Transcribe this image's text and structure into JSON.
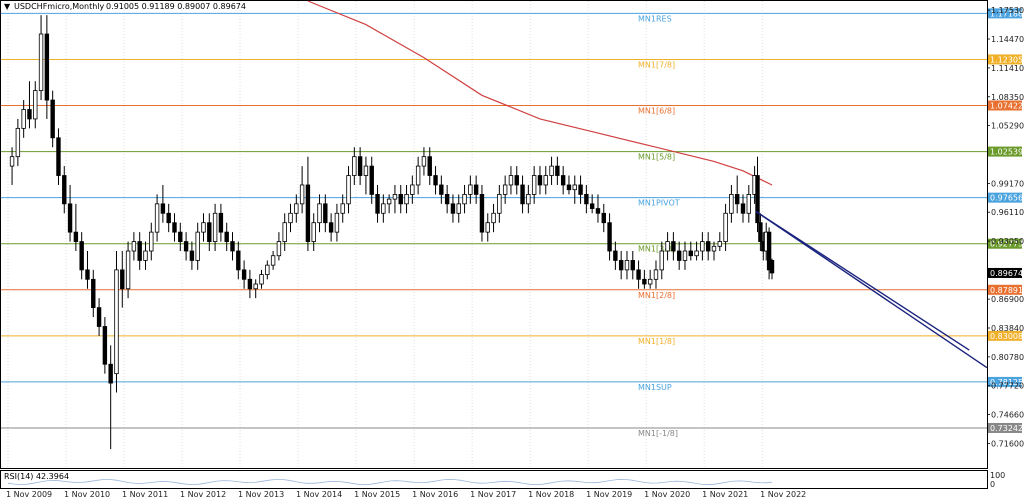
{
  "header": {
    "arrow_glyph": "▼",
    "symbol": "USDCHFmicro,Monthly",
    "ohlc": "0.91005 0.91189 0.89007 0.89674"
  },
  "rsi_panel": {
    "label": "RSI(14) 42.3964",
    "scale_top": "100",
    "scale_bottom": "0"
  },
  "chart_data": {
    "type": "candlestick",
    "symbol": "USDCHFmicro",
    "timeframe": "Monthly",
    "ylim": [
      0.69,
      1.185
    ],
    "price_axis_ticks": [
      "1.17530",
      "1.14470",
      "1.11410",
      "1.08350",
      "1.05290",
      "0.99170",
      "0.96110",
      "0.93050",
      "0.86900",
      "0.83840",
      "0.80780",
      "0.77720",
      "0.74660",
      "0.71600"
    ],
    "x_ticks": [
      "1 Nov 2009",
      "1 Nov 2010",
      "1 Nov 2011",
      "1 Nov 2012",
      "1 Nov 2013",
      "1 Nov 2014",
      "1 Nov 2015",
      "1 Nov 2016",
      "1 Nov 2017",
      "1 Nov 2018",
      "1 Nov 2019",
      "1 Nov 2020",
      "1 Nov 2021",
      "1 Nov 2022"
    ],
    "x_start_year": 2009.83,
    "x_end_year": 2023.0,
    "current_price": "0.89674",
    "levels": [
      {
        "name": "MN1RES",
        "value": 1.17188,
        "label": "1.17188",
        "color": "#4aa3df"
      },
      {
        "name": "MN1[7/8]",
        "value": 1.12305,
        "label": "1.12305",
        "color": "#f0b02a"
      },
      {
        "name": "MN1[6/8]",
        "value": 1.07422,
        "label": "1.07422",
        "color": "#e87030"
      },
      {
        "name": "MN1[5/8]",
        "value": 1.02539,
        "label": "1.02539",
        "color": "#6a9a2a"
      },
      {
        "name": "MN1PIVOT",
        "value": 0.97656,
        "label": "0.97656",
        "color": "#4aa3df"
      },
      {
        "name": "MN1[3/8]",
        "value": 0.92773,
        "label": "0.92773",
        "color": "#6a9a2a"
      },
      {
        "name": "MN1[2/8]",
        "value": 0.87891,
        "label": "0.87891",
        "color": "#e87030"
      },
      {
        "name": "MN1[1/8]",
        "value": 0.83008,
        "label": "0.83008",
        "color": "#f0b02a"
      },
      {
        "name": "MN1SUP",
        "value": 0.78125,
        "label": "0.78125",
        "color": "#4aa3df"
      },
      {
        "name": "MN1[-1/8]",
        "value": 0.73242,
        "label": "0.73242",
        "color": "#888888"
      }
    ],
    "ma_line": {
      "color": "#d04040",
      "points": [
        [
          2015.0,
          1.185
        ],
        [
          2016.0,
          1.16
        ],
        [
          2017.0,
          1.125
        ],
        [
          2018.0,
          1.085
        ],
        [
          2019.0,
          1.06
        ],
        [
          2020.0,
          1.045
        ],
        [
          2021.0,
          1.03
        ],
        [
          2022.0,
          1.015
        ],
        [
          2022.5,
          1.005
        ],
        [
          2023.0,
          0.99
        ]
      ]
    },
    "trend_lines": [
      {
        "color": "#1a237e",
        "from": [
          2022.72,
          0.962
        ],
        "to": [
          2027.1,
          0.78
        ]
      },
      {
        "color": "#1a237e",
        "from": [
          2022.72,
          0.962
        ],
        "to": [
          2026.4,
          0.815
        ]
      }
    ],
    "candles": [
      {
        "t": 2009.9,
        "o": 1.01,
        "h": 1.03,
        "l": 0.99,
        "c": 1.02
      },
      {
        "t": 2010.0,
        "o": 1.02,
        "h": 1.06,
        "l": 1.01,
        "c": 1.05
      },
      {
        "t": 2010.1,
        "o": 1.05,
        "h": 1.08,
        "l": 1.04,
        "c": 1.07
      },
      {
        "t": 2010.2,
        "o": 1.07,
        "h": 1.1,
        "l": 1.05,
        "c": 1.06
      },
      {
        "t": 2010.3,
        "o": 1.06,
        "h": 1.1,
        "l": 1.05,
        "c": 1.09
      },
      {
        "t": 2010.4,
        "o": 1.09,
        "h": 1.17,
        "l": 1.08,
        "c": 1.15
      },
      {
        "t": 2010.5,
        "o": 1.15,
        "h": 1.17,
        "l": 1.06,
        "c": 1.08
      },
      {
        "t": 2010.6,
        "o": 1.08,
        "h": 1.09,
        "l": 1.03,
        "c": 1.04
      },
      {
        "t": 2010.7,
        "o": 1.04,
        "h": 1.05,
        "l": 0.99,
        "c": 1.0
      },
      {
        "t": 2010.8,
        "o": 1.0,
        "h": 1.01,
        "l": 0.96,
        "c": 0.97
      },
      {
        "t": 2010.9,
        "o": 0.97,
        "h": 0.99,
        "l": 0.93,
        "c": 0.94
      },
      {
        "t": 2011.0,
        "o": 0.94,
        "h": 0.97,
        "l": 0.92,
        "c": 0.93
      },
      {
        "t": 2011.1,
        "o": 0.93,
        "h": 0.94,
        "l": 0.89,
        "c": 0.9
      },
      {
        "t": 2011.2,
        "o": 0.9,
        "h": 0.92,
        "l": 0.88,
        "c": 0.89
      },
      {
        "t": 2011.3,
        "o": 0.89,
        "h": 0.9,
        "l": 0.85,
        "c": 0.86
      },
      {
        "t": 2011.4,
        "o": 0.86,
        "h": 0.87,
        "l": 0.83,
        "c": 0.84
      },
      {
        "t": 2011.5,
        "o": 0.84,
        "h": 0.85,
        "l": 0.79,
        "c": 0.8
      },
      {
        "t": 2011.6,
        "o": 0.8,
        "h": 0.82,
        "l": 0.71,
        "c": 0.78
      },
      {
        "t": 2011.7,
        "o": 0.79,
        "h": 0.92,
        "l": 0.77,
        "c": 0.9
      },
      {
        "t": 2011.8,
        "o": 0.9,
        "h": 0.92,
        "l": 0.86,
        "c": 0.88
      },
      {
        "t": 2011.9,
        "o": 0.88,
        "h": 0.93,
        "l": 0.87,
        "c": 0.92
      },
      {
        "t": 2012.0,
        "o": 0.92,
        "h": 0.94,
        "l": 0.91,
        "c": 0.93
      },
      {
        "t": 2012.1,
        "o": 0.93,
        "h": 0.94,
        "l": 0.9,
        "c": 0.91
      },
      {
        "t": 2012.2,
        "o": 0.91,
        "h": 0.93,
        "l": 0.9,
        "c": 0.92
      },
      {
        "t": 2012.3,
        "o": 0.92,
        "h": 0.95,
        "l": 0.91,
        "c": 0.94
      },
      {
        "t": 2012.4,
        "o": 0.94,
        "h": 0.98,
        "l": 0.93,
        "c": 0.97
      },
      {
        "t": 2012.5,
        "o": 0.97,
        "h": 0.99,
        "l": 0.95,
        "c": 0.96
      },
      {
        "t": 2012.6,
        "o": 0.96,
        "h": 0.97,
        "l": 0.94,
        "c": 0.95
      },
      {
        "t": 2012.7,
        "o": 0.95,
        "h": 0.96,
        "l": 0.93,
        "c": 0.94
      },
      {
        "t": 2012.8,
        "o": 0.94,
        "h": 0.95,
        "l": 0.92,
        "c": 0.93
      },
      {
        "t": 2012.9,
        "o": 0.93,
        "h": 0.94,
        "l": 0.91,
        "c": 0.92
      },
      {
        "t": 2013.0,
        "o": 0.92,
        "h": 0.93,
        "l": 0.9,
        "c": 0.91
      },
      {
        "t": 2013.1,
        "o": 0.91,
        "h": 0.95,
        "l": 0.9,
        "c": 0.94
      },
      {
        "t": 2013.2,
        "o": 0.94,
        "h": 0.96,
        "l": 0.93,
        "c": 0.95
      },
      {
        "t": 2013.3,
        "o": 0.95,
        "h": 0.96,
        "l": 0.92,
        "c": 0.93
      },
      {
        "t": 2013.4,
        "o": 0.93,
        "h": 0.97,
        "l": 0.92,
        "c": 0.96
      },
      {
        "t": 2013.5,
        "o": 0.96,
        "h": 0.97,
        "l": 0.93,
        "c": 0.94
      },
      {
        "t": 2013.6,
        "o": 0.94,
        "h": 0.95,
        "l": 0.92,
        "c": 0.93
      },
      {
        "t": 2013.7,
        "o": 0.93,
        "h": 0.94,
        "l": 0.91,
        "c": 0.92
      },
      {
        "t": 2013.8,
        "o": 0.92,
        "h": 0.93,
        "l": 0.89,
        "c": 0.9
      },
      {
        "t": 2013.9,
        "o": 0.9,
        "h": 0.91,
        "l": 0.88,
        "c": 0.89
      },
      {
        "t": 2014.0,
        "o": 0.89,
        "h": 0.9,
        "l": 0.87,
        "c": 0.88
      },
      {
        "t": 2014.1,
        "o": 0.88,
        "h": 0.89,
        "l": 0.87,
        "c": 0.885
      },
      {
        "t": 2014.2,
        "o": 0.885,
        "h": 0.9,
        "l": 0.88,
        "c": 0.895
      },
      {
        "t": 2014.3,
        "o": 0.895,
        "h": 0.91,
        "l": 0.89,
        "c": 0.905
      },
      {
        "t": 2014.4,
        "o": 0.905,
        "h": 0.92,
        "l": 0.9,
        "c": 0.915
      },
      {
        "t": 2014.5,
        "o": 0.915,
        "h": 0.94,
        "l": 0.91,
        "c": 0.93
      },
      {
        "t": 2014.6,
        "o": 0.93,
        "h": 0.96,
        "l": 0.92,
        "c": 0.95
      },
      {
        "t": 2014.7,
        "o": 0.95,
        "h": 0.97,
        "l": 0.94,
        "c": 0.96
      },
      {
        "t": 2014.8,
        "o": 0.96,
        "h": 0.98,
        "l": 0.95,
        "c": 0.97
      },
      {
        "t": 2014.9,
        "o": 0.97,
        "h": 1.01,
        "l": 0.96,
        "c": 0.99
      },
      {
        "t": 2015.0,
        "o": 0.99,
        "h": 1.02,
        "l": 0.92,
        "c": 0.93
      },
      {
        "t": 2015.1,
        "o": 0.93,
        "h": 0.96,
        "l": 0.92,
        "c": 0.95
      },
      {
        "t": 2015.2,
        "o": 0.95,
        "h": 0.98,
        "l": 0.94,
        "c": 0.97
      },
      {
        "t": 2015.3,
        "o": 0.97,
        "h": 0.98,
        "l": 0.94,
        "c": 0.95
      },
      {
        "t": 2015.4,
        "o": 0.95,
        "h": 0.96,
        "l": 0.93,
        "c": 0.94
      },
      {
        "t": 2015.5,
        "o": 0.94,
        "h": 0.97,
        "l": 0.93,
        "c": 0.96
      },
      {
        "t": 2015.6,
        "o": 0.96,
        "h": 0.98,
        "l": 0.95,
        "c": 0.97
      },
      {
        "t": 2015.7,
        "o": 0.97,
        "h": 1.01,
        "l": 0.96,
        "c": 1.0
      },
      {
        "t": 2015.8,
        "o": 1.0,
        "h": 1.03,
        "l": 0.99,
        "c": 1.02
      },
      {
        "t": 2015.9,
        "o": 1.02,
        "h": 1.03,
        "l": 0.99,
        "c": 1.0
      },
      {
        "t": 2016.0,
        "o": 1.0,
        "h": 1.02,
        "l": 0.98,
        "c": 1.01
      },
      {
        "t": 2016.1,
        "o": 1.01,
        "h": 1.02,
        "l": 0.97,
        "c": 0.98
      },
      {
        "t": 2016.2,
        "o": 0.98,
        "h": 0.99,
        "l": 0.95,
        "c": 0.96
      },
      {
        "t": 2016.3,
        "o": 0.96,
        "h": 0.98,
        "l": 0.95,
        "c": 0.97
      },
      {
        "t": 2016.4,
        "o": 0.97,
        "h": 0.98,
        "l": 0.96,
        "c": 0.975
      },
      {
        "t": 2016.5,
        "o": 0.975,
        "h": 0.99,
        "l": 0.96,
        "c": 0.98
      },
      {
        "t": 2016.6,
        "o": 0.98,
        "h": 0.99,
        "l": 0.96,
        "c": 0.97
      },
      {
        "t": 2016.7,
        "o": 0.97,
        "h": 0.99,
        "l": 0.96,
        "c": 0.98
      },
      {
        "t": 2016.8,
        "o": 0.98,
        "h": 1.0,
        "l": 0.97,
        "c": 0.99
      },
      {
        "t": 2016.9,
        "o": 0.99,
        "h": 1.02,
        "l": 0.98,
        "c": 1.01
      },
      {
        "t": 2017.0,
        "o": 1.01,
        "h": 1.03,
        "l": 1.0,
        "c": 1.02
      },
      {
        "t": 2017.1,
        "o": 1.02,
        "h": 1.03,
        "l": 0.99,
        "c": 1.0
      },
      {
        "t": 2017.2,
        "o": 1.0,
        "h": 1.01,
        "l": 0.98,
        "c": 0.99
      },
      {
        "t": 2017.3,
        "o": 0.99,
        "h": 1.0,
        "l": 0.97,
        "c": 0.98
      },
      {
        "t": 2017.4,
        "o": 0.98,
        "h": 0.99,
        "l": 0.96,
        "c": 0.97
      },
      {
        "t": 2017.5,
        "o": 0.97,
        "h": 0.98,
        "l": 0.95,
        "c": 0.96
      },
      {
        "t": 2017.6,
        "o": 0.96,
        "h": 0.98,
        "l": 0.95,
        "c": 0.97
      },
      {
        "t": 2017.7,
        "o": 0.97,
        "h": 0.99,
        "l": 0.96,
        "c": 0.98
      },
      {
        "t": 2017.8,
        "o": 0.98,
        "h": 1.0,
        "l": 0.97,
        "c": 0.99
      },
      {
        "t": 2017.9,
        "o": 0.99,
        "h": 1.0,
        "l": 0.97,
        "c": 0.98
      },
      {
        "t": 2018.0,
        "o": 0.98,
        "h": 0.99,
        "l": 0.93,
        "c": 0.94
      },
      {
        "t": 2018.1,
        "o": 0.94,
        "h": 0.96,
        "l": 0.93,
        "c": 0.95
      },
      {
        "t": 2018.2,
        "o": 0.95,
        "h": 0.97,
        "l": 0.94,
        "c": 0.96
      },
      {
        "t": 2018.3,
        "o": 0.96,
        "h": 0.99,
        "l": 0.95,
        "c": 0.98
      },
      {
        "t": 2018.4,
        "o": 0.98,
        "h": 1.0,
        "l": 0.97,
        "c": 0.99
      },
      {
        "t": 2018.5,
        "o": 0.99,
        "h": 1.01,
        "l": 0.98,
        "c": 1.0
      },
      {
        "t": 2018.6,
        "o": 1.0,
        "h": 1.01,
        "l": 0.98,
        "c": 0.99
      },
      {
        "t": 2018.7,
        "o": 0.99,
        "h": 1.0,
        "l": 0.96,
        "c": 0.97
      },
      {
        "t": 2018.8,
        "o": 0.97,
        "h": 0.99,
        "l": 0.96,
        "c": 0.98
      },
      {
        "t": 2018.9,
        "o": 0.98,
        "h": 1.01,
        "l": 0.97,
        "c": 1.0
      },
      {
        "t": 2019.0,
        "o": 1.0,
        "h": 1.01,
        "l": 0.98,
        "c": 0.99
      },
      {
        "t": 2019.1,
        "o": 0.99,
        "h": 1.01,
        "l": 0.98,
        "c": 1.0
      },
      {
        "t": 2019.2,
        "o": 1.0,
        "h": 1.02,
        "l": 0.99,
        "c": 1.01
      },
      {
        "t": 2019.3,
        "o": 1.01,
        "h": 1.02,
        "l": 0.99,
        "c": 1.0
      },
      {
        "t": 2019.4,
        "o": 1.0,
        "h": 1.01,
        "l": 0.98,
        "c": 0.99
      },
      {
        "t": 2019.5,
        "o": 0.99,
        "h": 1.0,
        "l": 0.98,
        "c": 0.985
      },
      {
        "t": 2019.6,
        "o": 0.985,
        "h": 1.0,
        "l": 0.97,
        "c": 0.99
      },
      {
        "t": 2019.7,
        "o": 0.99,
        "h": 1.0,
        "l": 0.97,
        "c": 0.98
      },
      {
        "t": 2019.8,
        "o": 0.98,
        "h": 0.99,
        "l": 0.96,
        "c": 0.97
      },
      {
        "t": 2019.9,
        "o": 0.97,
        "h": 0.98,
        "l": 0.96,
        "c": 0.965
      },
      {
        "t": 2020.0,
        "o": 0.965,
        "h": 0.98,
        "l": 0.95,
        "c": 0.96
      },
      {
        "t": 2020.1,
        "o": 0.96,
        "h": 0.97,
        "l": 0.94,
        "c": 0.95
      },
      {
        "t": 2020.2,
        "o": 0.95,
        "h": 0.96,
        "l": 0.91,
        "c": 0.92
      },
      {
        "t": 2020.3,
        "o": 0.92,
        "h": 0.93,
        "l": 0.9,
        "c": 0.91
      },
      {
        "t": 2020.4,
        "o": 0.91,
        "h": 0.92,
        "l": 0.89,
        "c": 0.9
      },
      {
        "t": 2020.5,
        "o": 0.9,
        "h": 0.92,
        "l": 0.89,
        "c": 0.91
      },
      {
        "t": 2020.6,
        "o": 0.91,
        "h": 0.92,
        "l": 0.89,
        "c": 0.9
      },
      {
        "t": 2020.7,
        "o": 0.9,
        "h": 0.91,
        "l": 0.88,
        "c": 0.89
      },
      {
        "t": 2020.8,
        "o": 0.89,
        "h": 0.9,
        "l": 0.88,
        "c": 0.885
      },
      {
        "t": 2020.9,
        "o": 0.885,
        "h": 0.9,
        "l": 0.88,
        "c": 0.89
      },
      {
        "t": 2021.0,
        "o": 0.89,
        "h": 0.91,
        "l": 0.88,
        "c": 0.9
      },
      {
        "t": 2021.1,
        "o": 0.9,
        "h": 0.93,
        "l": 0.89,
        "c": 0.92
      },
      {
        "t": 2021.2,
        "o": 0.92,
        "h": 0.94,
        "l": 0.91,
        "c": 0.93
      },
      {
        "t": 2021.3,
        "o": 0.93,
        "h": 0.94,
        "l": 0.91,
        "c": 0.92
      },
      {
        "t": 2021.4,
        "o": 0.92,
        "h": 0.93,
        "l": 0.9,
        "c": 0.91
      },
      {
        "t": 2021.5,
        "o": 0.91,
        "h": 0.93,
        "l": 0.9,
        "c": 0.92
      },
      {
        "t": 2021.6,
        "o": 0.92,
        "h": 0.93,
        "l": 0.91,
        "c": 0.915
      },
      {
        "t": 2021.7,
        "o": 0.915,
        "h": 0.93,
        "l": 0.91,
        "c": 0.92
      },
      {
        "t": 2021.8,
        "o": 0.92,
        "h": 0.94,
        "l": 0.91,
        "c": 0.93
      },
      {
        "t": 2021.9,
        "o": 0.93,
        "h": 0.94,
        "l": 0.91,
        "c": 0.92
      },
      {
        "t": 2022.0,
        "o": 0.92,
        "h": 0.93,
        "l": 0.91,
        "c": 0.925
      },
      {
        "t": 2022.1,
        "o": 0.925,
        "h": 0.94,
        "l": 0.92,
        "c": 0.93
      },
      {
        "t": 2022.2,
        "o": 0.93,
        "h": 0.97,
        "l": 0.92,
        "c": 0.96
      },
      {
        "t": 2022.3,
        "o": 0.96,
        "h": 0.99,
        "l": 0.95,
        "c": 0.98
      },
      {
        "t": 2022.4,
        "o": 0.98,
        "h": 1.0,
        "l": 0.96,
        "c": 0.97
      },
      {
        "t": 2022.5,
        "o": 0.97,
        "h": 0.98,
        "l": 0.95,
        "c": 0.96
      },
      {
        "t": 2022.6,
        "o": 0.96,
        "h": 0.99,
        "l": 0.95,
        "c": 0.98
      },
      {
        "t": 2022.7,
        "o": 0.98,
        "h": 1.01,
        "l": 0.97,
        "c": 1.0
      },
      {
        "t": 2022.75,
        "o": 1.0,
        "h": 1.02,
        "l": 0.94,
        "c": 0.95
      },
      {
        "t": 2022.8,
        "o": 0.95,
        "h": 0.96,
        "l": 0.92,
        "c": 0.93
      },
      {
        "t": 2022.85,
        "o": 0.93,
        "h": 0.94,
        "l": 0.91,
        "c": 0.92
      },
      {
        "t": 2022.9,
        "o": 0.92,
        "h": 0.95,
        "l": 0.91,
        "c": 0.94
      },
      {
        "t": 2022.95,
        "o": 0.94,
        "h": 0.945,
        "l": 0.89,
        "c": 0.9
      },
      {
        "t": 2023.0,
        "o": 0.91005,
        "h": 0.91189,
        "l": 0.89007,
        "c": 0.89674
      }
    ]
  }
}
